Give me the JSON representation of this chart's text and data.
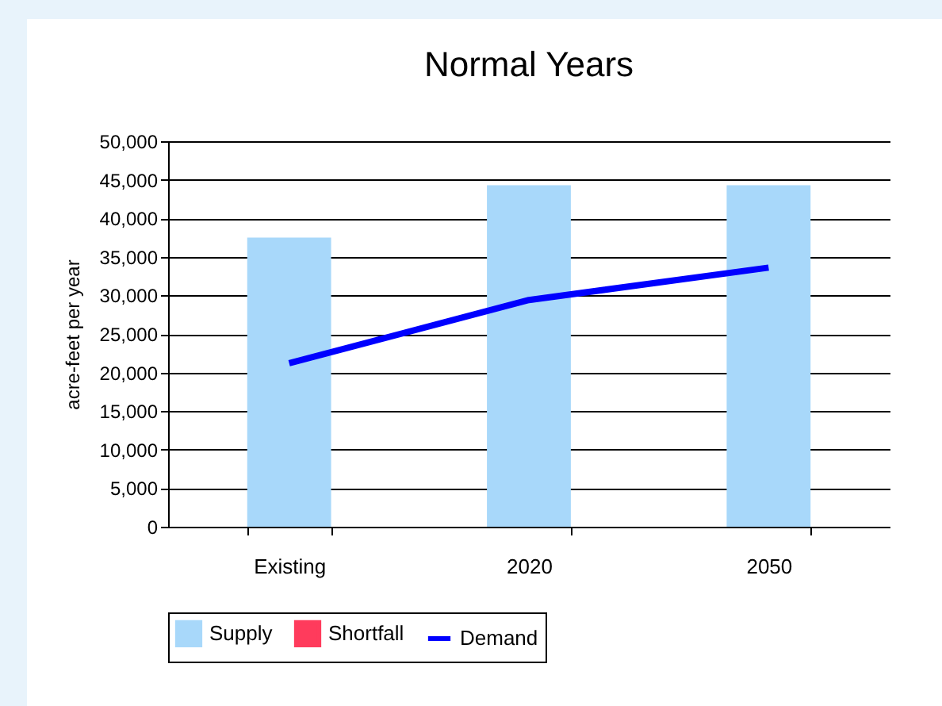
{
  "chart_data": {
    "type": "bar",
    "title": "Normal Years",
    "ylabel": "acre-feet per year",
    "categories": [
      "Existing",
      "2020",
      "2050"
    ],
    "series": [
      {
        "name": "Supply",
        "color": "#a8d8fa",
        "values": [
          37500,
          44300,
          44300
        ]
      },
      {
        "name": "Shortfall",
        "color": "#ff3b5c",
        "values": [
          null,
          null,
          null
        ]
      },
      {
        "name": "Demand",
        "type": "line",
        "color": "#0000ff",
        "values": [
          21200,
          29400,
          33600
        ]
      }
    ],
    "ylim": [
      0,
      50000
    ],
    "yticks": [
      0,
      {
        "value": 5000,
        "label": "5,000"
      },
      {
        "value": 10000,
        "label": "10,000"
      },
      {
        "value": 15000,
        "label": "15,000"
      },
      {
        "value": 20000,
        "label": "20,000"
      },
      {
        "value": 25000,
        "label": "25,000"
      },
      {
        "value": 30000,
        "label": "30,000"
      },
      {
        "value": 35000,
        "label": "35,000"
      },
      {
        "value": 40000,
        "label": "40,000"
      },
      {
        "value": 45000,
        "label": "45,000"
      },
      {
        "value": 50000,
        "label": "50,000"
      }
    ],
    "grid": "y",
    "legend": "bottom",
    "marker": "none",
    "line_style": "solid"
  }
}
